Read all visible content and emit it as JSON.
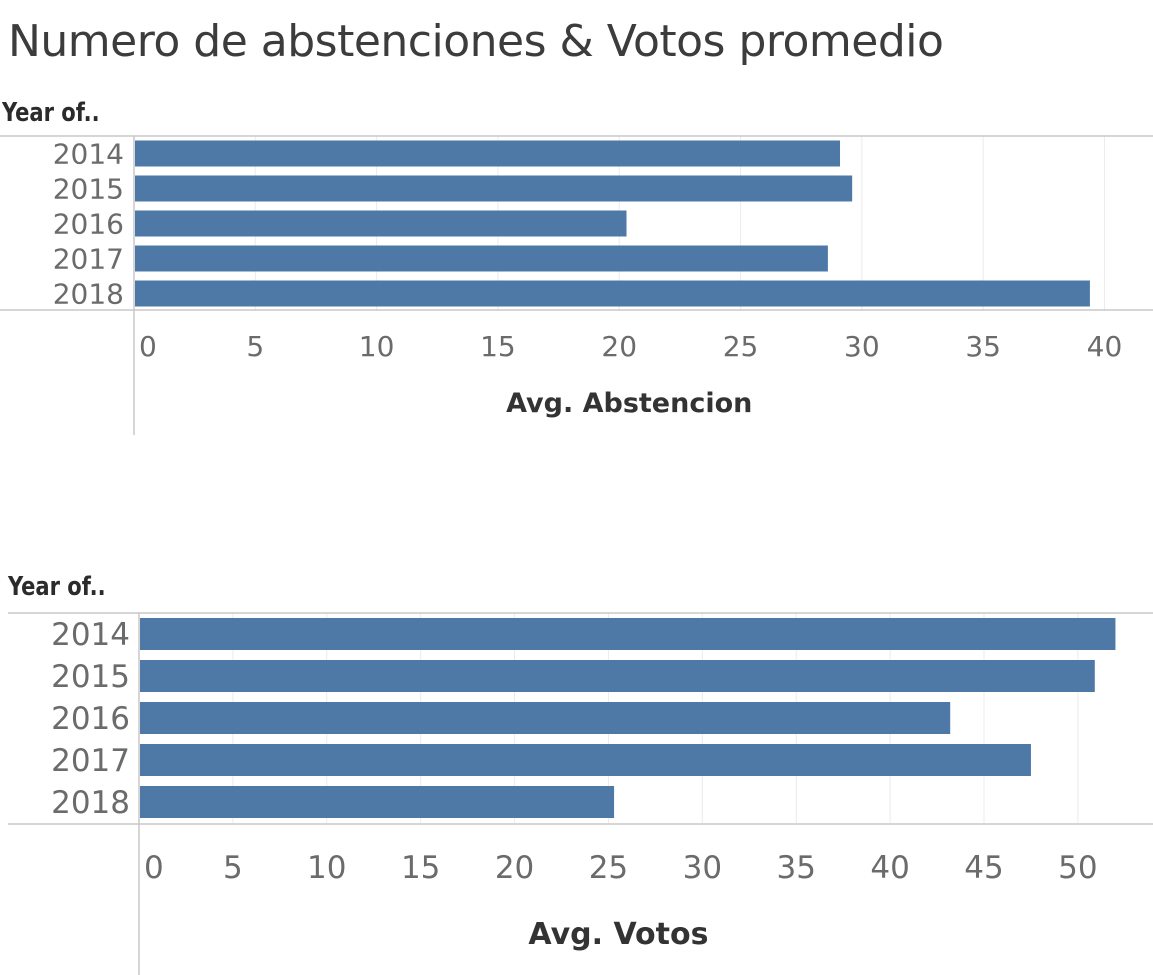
{
  "title": "Numero de abstenciones & Votos promedio",
  "colors": {
    "bar": "#4e79a7",
    "grid": "#ebebeb",
    "axis": "#c8c8c8",
    "tick_text": "#6b6b6b",
    "label_text": "#333333"
  },
  "chart_data": [
    {
      "type": "bar",
      "orientation": "horizontal",
      "row_header": "Year of..",
      "categories": [
        "2014",
        "2015",
        "2016",
        "2017",
        "2018"
      ],
      "values": [
        29.1,
        29.6,
        20.3,
        28.6,
        39.4
      ],
      "xlabel": "Avg. Abstencion",
      "xlim": [
        0,
        42
      ],
      "xticks": [
        0,
        5,
        10,
        15,
        20,
        25,
        30,
        35,
        40
      ],
      "grid": true
    },
    {
      "type": "bar",
      "orientation": "horizontal",
      "row_header": "Year of..",
      "categories": [
        "2014",
        "2015",
        "2016",
        "2017",
        "2018"
      ],
      "values": [
        52.0,
        50.9,
        43.2,
        47.5,
        25.3
      ],
      "xlabel": "Avg. Votos",
      "xlim": [
        0,
        54
      ],
      "xticks": [
        0,
        5,
        10,
        15,
        20,
        25,
        30,
        35,
        40,
        45,
        50
      ],
      "grid": true
    }
  ]
}
